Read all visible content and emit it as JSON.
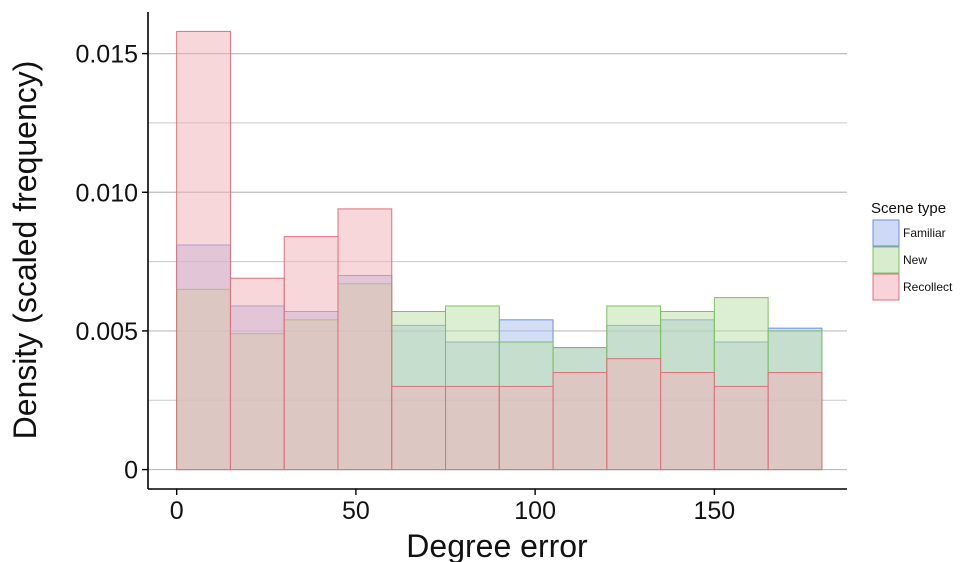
{
  "chart_data": {
    "type": "bar",
    "bar_style": "overlapping histogram",
    "xlabel": "Degree error",
    "ylabel": "Density (scaled frequency)",
    "xlim": [
      -8,
      187
    ],
    "ylim": [
      -0.0007,
      0.0165
    ],
    "x_ticks": [
      0,
      50,
      100,
      150
    ],
    "x_tick_labels": [
      "0",
      "50",
      "100",
      "150"
    ],
    "y_ticks": [
      0,
      0.005,
      0.01,
      0.015
    ],
    "y_tick_labels": [
      "0",
      "0.005",
      "0.010",
      "0.015"
    ],
    "y_minor_gridlines": [
      0.0025,
      0.0075,
      0.0125
    ],
    "grid": "horizontal",
    "bin_edges": [
      0,
      15,
      30,
      45,
      60,
      75,
      90,
      105,
      120,
      135,
      150,
      165,
      180
    ],
    "legend": {
      "title": "Scene type",
      "position": "right"
    },
    "series": [
      {
        "name": "Familiar",
        "fill": "#a6bced",
        "stroke": "#6b8fd9",
        "values": [
          0.0081,
          0.0059,
          0.0057,
          0.007,
          0.0052,
          0.0046,
          0.0054,
          0.0044,
          0.0052,
          0.0054,
          0.0046,
          0.0051
        ]
      },
      {
        "name": "New",
        "fill": "#b9dfa5",
        "stroke": "#7cc160",
        "values": [
          0.0065,
          0.0049,
          0.0054,
          0.0067,
          0.0057,
          0.0059,
          0.0046,
          0.0044,
          0.0059,
          0.0057,
          0.0062,
          0.005
        ]
      },
      {
        "name": "Recollect",
        "fill": "#f2b0b8",
        "stroke": "#e0707c",
        "values": [
          0.0158,
          0.0069,
          0.0084,
          0.0094,
          0.003,
          0.003,
          0.003,
          0.0035,
          0.004,
          0.0035,
          0.003,
          0.0035
        ]
      }
    ]
  }
}
